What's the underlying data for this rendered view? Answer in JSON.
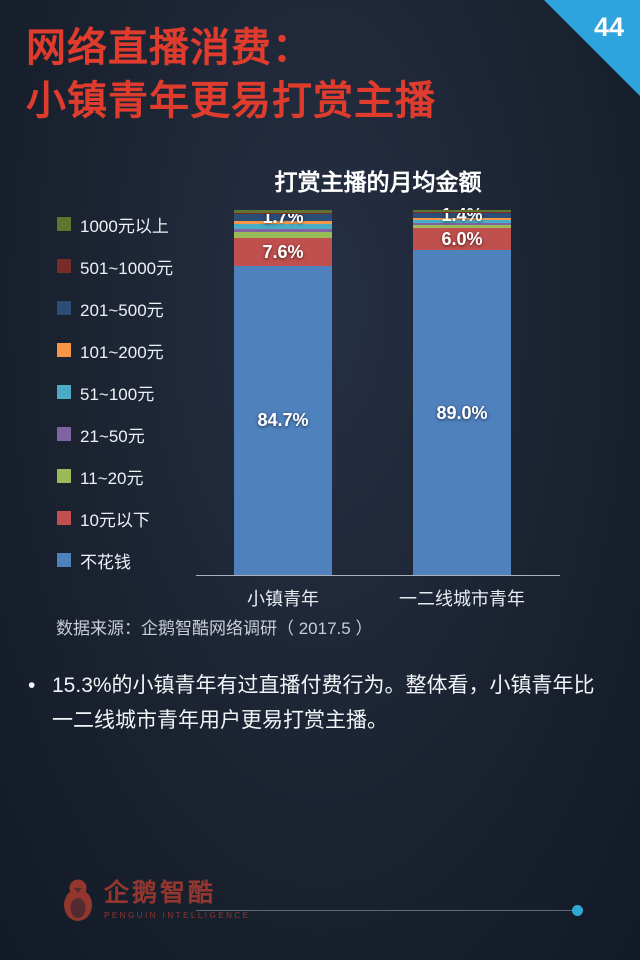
{
  "page": {
    "page_number": "44",
    "title_line1": "网络直播消费：",
    "title_line2": "小镇青年更易打赏主播",
    "source": "数据来源：企鹅智酷网络调研（ 2017.5 ）",
    "bullet_marker": "•",
    "bullet_text": "15.3%的小镇青年有过直播付费行为。整体看，小镇青年比一二线城市青年用户更易打赏主播。"
  },
  "footer": {
    "logo_text": "企鹅智酷",
    "logo_subtitle": "PENGUIN INTELLIGENCE"
  },
  "colors": {
    "background": "#1b2331",
    "title_red": "#e03c2e",
    "corner_blue": "#2ea4de",
    "accent_dot": "#2fa8d5"
  },
  "chart_data": {
    "type": "bar",
    "stacked": true,
    "unit": "percent",
    "title": "打赏主播的月均金额",
    "categories": [
      "小镇青年",
      "一二线城市青年"
    ],
    "ylim": [
      0,
      100
    ],
    "legend_position": "left",
    "series": [
      {
        "name": "不花钱",
        "color": "#4f81bd",
        "values": [
          84.7,
          89.0
        ],
        "labels": [
          "84.7%",
          "89.0%"
        ]
      },
      {
        "name": "10元以下",
        "color": "#c0504d",
        "values": [
          7.6,
          6.0
        ],
        "labels": [
          "7.6%",
          "6.0%"
        ]
      },
      {
        "name": "11~20元",
        "color": "#9bbb59",
        "values": [
          1.6,
          0.9
        ]
      },
      {
        "name": "21~50元",
        "color": "#8064a2",
        "values": [
          1.0,
          0.6
        ]
      },
      {
        "name": "51~100元",
        "color": "#4bacc6",
        "values": [
          1.3,
          0.8
        ]
      },
      {
        "name": "101~200元",
        "color": "#f79646",
        "values": [
          0.9,
          0.5
        ]
      },
      {
        "name": "201~500元",
        "color": "#2c4d75",
        "values": [
          1.7,
          1.4
        ],
        "labels": [
          "1.7%",
          "1.4%"
        ]
      },
      {
        "name": "501~1000元",
        "color": "#772c2a",
        "values": [
          0.5,
          0.3
        ]
      },
      {
        "name": "1000元以上",
        "color": "#5f7530",
        "values": [
          0.7,
          0.5
        ]
      }
    ]
  }
}
